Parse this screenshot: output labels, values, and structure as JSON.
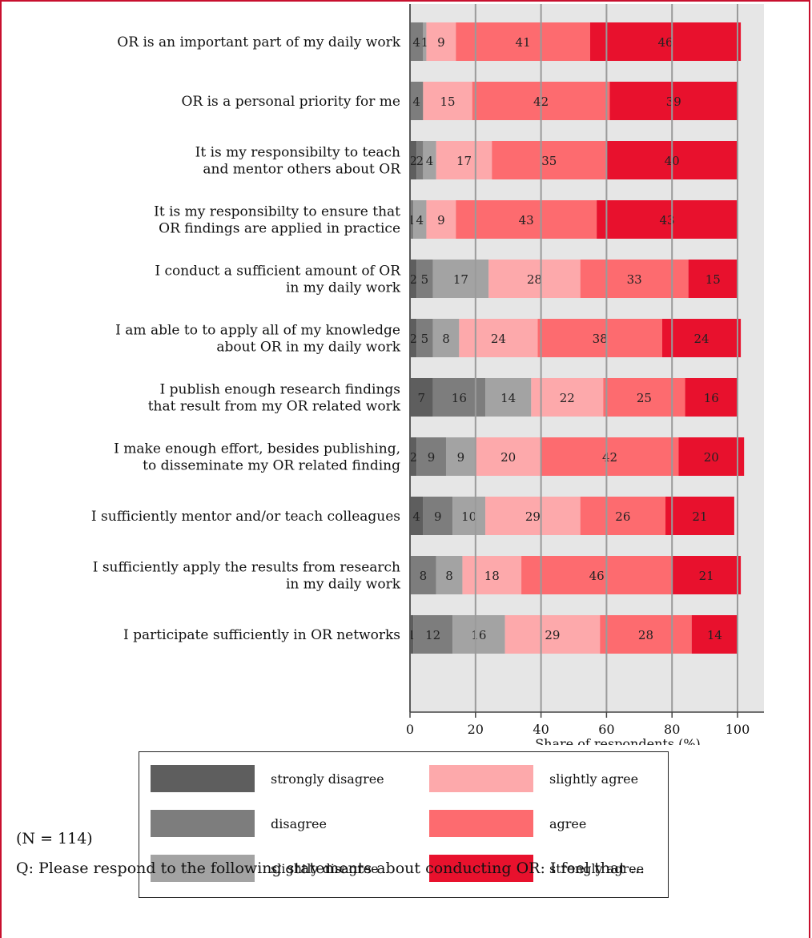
{
  "chart_data": {
    "type": "bar",
    "orientation": "horizontal",
    "stacked": true,
    "categories": [
      [
        "OR is an important part of my daily work"
      ],
      [
        "OR is a personal priority for me"
      ],
      [
        "It is my responsibilty to teach",
        "and mentor others about OR"
      ],
      [
        "It is my responsibilty to ensure that",
        "OR findings  are applied in practice"
      ],
      [
        "I conduct a sufficient amount of OR",
        "in my daily work"
      ],
      [
        "I am able to to apply all of my knowledge",
        "about OR in my daily work"
      ],
      [
        "I publish enough research findings",
        "that result from my OR related work"
      ],
      [
        "I make enough effort, besides publishing,",
        "to disseminate my OR related finding"
      ],
      [
        "I sufficiently mentor and/or teach colleagues"
      ],
      [
        "I sufficiently apply the results from research",
        "in my daily work"
      ],
      [
        "I participate sufficiently in OR networks"
      ]
    ],
    "series": [
      {
        "name": "strongly disagree",
        "color": "#5e5e5e",
        "values": [
          0,
          0,
          2,
          0,
          2,
          2,
          7,
          2,
          4,
          0,
          1
        ]
      },
      {
        "name": "disagree",
        "color": "#7d7d7d",
        "values": [
          4,
          4,
          2,
          1,
          5,
          5,
          16,
          9,
          9,
          8,
          12
        ]
      },
      {
        "name": "slightly disagree",
        "color": "#a3a3a3",
        "values": [
          1,
          0,
          4,
          4,
          17,
          8,
          14,
          9,
          10,
          8,
          16
        ]
      },
      {
        "name": "slightly agree",
        "color": "#fda9ab",
        "values": [
          9,
          15,
          17,
          9,
          28,
          24,
          22,
          20,
          29,
          18,
          29
        ]
      },
      {
        "name": "agree",
        "color": "#fd6b6f",
        "values": [
          41,
          42,
          35,
          43,
          33,
          38,
          25,
          42,
          26,
          46,
          28
        ]
      },
      {
        "name": "strongly agree",
        "color": "#e8112d",
        "values": [
          46,
          39,
          40,
          43,
          15,
          24,
          16,
          20,
          21,
          21,
          14
        ]
      }
    ],
    "xlabel": "Share of respondents (%)",
    "xlim": [
      0,
      100
    ],
    "xticks": [
      "0",
      "20",
      "40",
      "60",
      "80",
      "100"
    ],
    "grid": true,
    "legend_position": "bottom"
  },
  "footnote": {
    "n": "(N = 114)",
    "question": "Q: Please respond to the following statements about conducting OR: I feel that ..."
  }
}
